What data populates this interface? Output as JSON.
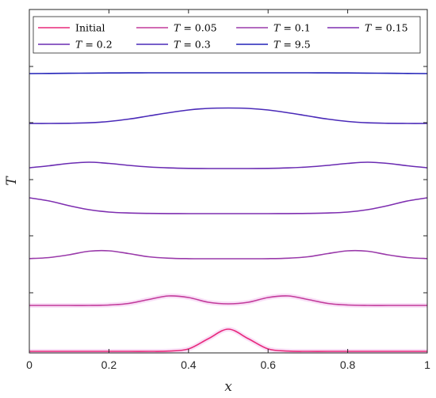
{
  "chart_data": {
    "type": "line",
    "title": "",
    "xlabel": "x",
    "ylabel": "T",
    "xlim": [
      0,
      1
    ],
    "xticks": [
      "0",
      "0.2",
      "0.4",
      "0.6",
      "0.8",
      "1"
    ],
    "ytick_labels_shown": false,
    "grid": false,
    "legend_position": "top",
    "legend_columns": 4,
    "x": [
      0,
      0.05,
      0.1,
      0.15,
      0.2,
      0.25,
      0.3,
      0.35,
      0.4,
      0.45,
      0.5,
      0.55,
      0.6,
      0.65,
      0.7,
      0.75,
      0.8,
      0.85,
      0.9,
      0.95,
      1
    ],
    "series": [
      {
        "name": "Initial",
        "color": "#e8287a",
        "offset": 0,
        "values": [
          0,
          0,
          0,
          0,
          0,
          0,
          0,
          0.3,
          3,
          16,
          28,
          16,
          3,
          0.3,
          0,
          0,
          0,
          0,
          0,
          0,
          0
        ]
      },
      {
        "name": "T = 0.05",
        "color": "#c23a9a",
        "offset": 1,
        "values": [
          0,
          0,
          0,
          0,
          0.5,
          2.5,
          7.5,
          12,
          10,
          4,
          2,
          4,
          10,
          12,
          7.5,
          2.5,
          0.5,
          0,
          0,
          0,
          0
        ]
      },
      {
        "name": "T = 0.1",
        "color": "#9a3aaa",
        "offset": 2,
        "values": [
          0.2,
          1.5,
          5,
          9.5,
          10,
          6.5,
          2.5,
          0.7,
          0.1,
          0,
          0,
          0,
          0.1,
          0.7,
          2.5,
          6.5,
          10,
          9.5,
          5,
          1.5,
          0.2
        ]
      },
      {
        "name": "T = 0.15",
        "color": "#7e2eb0",
        "offset": 3,
        "values": [
          20,
          16,
          10,
          5,
          2,
          0.8,
          0.3,
          0.1,
          0,
          0,
          0,
          0,
          0,
          0.1,
          0.3,
          0.8,
          2,
          5,
          10,
          16,
          20
        ]
      },
      {
        "name": "T = 0.2",
        "color": "#6a2bb2",
        "offset": 4,
        "values": [
          1,
          3.5,
          6.5,
          8,
          6.5,
          4,
          2,
          0.8,
          0.2,
          0,
          0,
          0,
          0.2,
          0.8,
          2,
          4,
          6.5,
          8,
          6.5,
          3.5,
          1
        ]
      },
      {
        "name": "T = 0.3",
        "color": "#4a2ab8",
        "offset": 5,
        "values": [
          0,
          0,
          0.2,
          0.8,
          2.5,
          5.5,
          9.5,
          13.5,
          17,
          19,
          19.5,
          19,
          17,
          13.5,
          9.5,
          5.5,
          2.5,
          0.8,
          0.2,
          0,
          0
        ]
      },
      {
        "name": "T = 9.5",
        "color": "#2222b8",
        "offset": 6,
        "values": [
          0,
          0.2,
          0.4,
          0.6,
          0.8,
          0.9,
          1,
          1,
          1,
          1,
          1,
          1,
          1,
          1,
          1,
          0.9,
          0.8,
          0.6,
          0.4,
          0.2,
          0
        ]
      }
    ]
  }
}
